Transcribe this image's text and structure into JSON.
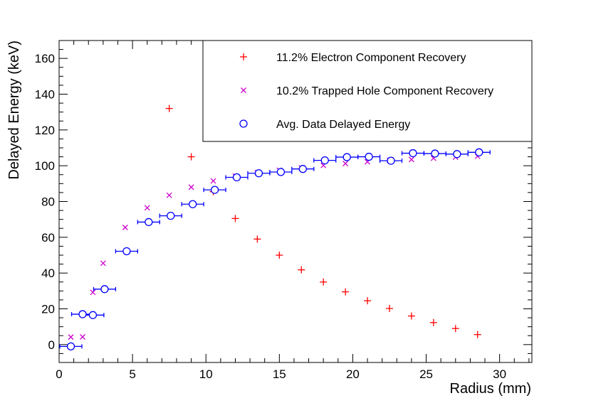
{
  "chart_data": {
    "type": "scatter",
    "xlabel": "Radius (mm)",
    "ylabel": "Delayed Energy (keV)",
    "xlim": [
      0,
      32.2
    ],
    "ylim": [
      -10,
      170
    ],
    "x_ticks": [
      "0",
      "5",
      "10",
      "15",
      "20",
      "25",
      "30"
    ],
    "y_ticks": [
      "0",
      "20",
      "40",
      "60",
      "80",
      "100",
      "120",
      "140",
      "160"
    ],
    "legend_position": "top-right",
    "colors": {
      "electron": "#ff0000",
      "hole": "#cc00cc",
      "data": "#0000ff"
    },
    "series": [
      {
        "name": "11.2% Electron Component Recovery",
        "marker": "plus",
        "points": [
          [
            7.5,
            132
          ],
          [
            9.0,
            105
          ],
          [
            10.5,
            85.5
          ],
          [
            12.0,
            70.5
          ],
          [
            13.5,
            59
          ],
          [
            15.0,
            50
          ],
          [
            16.5,
            41.8
          ],
          [
            18.0,
            35
          ],
          [
            19.5,
            29.5
          ],
          [
            21.0,
            24.5
          ],
          [
            22.5,
            20.2
          ],
          [
            24.0,
            16
          ],
          [
            25.5,
            12.3
          ],
          [
            27.0,
            9
          ],
          [
            28.5,
            5.6
          ]
        ]
      },
      {
        "name": "10.2% Trapped Hole Component Recovery",
        "marker": "cross",
        "points": [
          [
            0.8,
            4.2
          ],
          [
            1.6,
            4.3
          ],
          [
            2.3,
            29.2
          ],
          [
            3.0,
            45.5
          ],
          [
            4.5,
            65.5
          ],
          [
            6.0,
            76.5
          ],
          [
            7.5,
            83.5
          ],
          [
            9.0,
            88
          ],
          [
            10.5,
            91.5
          ],
          [
            12.0,
            94.2
          ],
          [
            13.5,
            96.2
          ],
          [
            15.0,
            97.5
          ],
          [
            16.5,
            98.8
          ],
          [
            18.0,
            100.2
          ],
          [
            19.5,
            101.2
          ],
          [
            21.0,
            102.2
          ],
          [
            22.5,
            103
          ],
          [
            24.0,
            103.5
          ],
          [
            25.5,
            104.2
          ],
          [
            27.0,
            104.8
          ],
          [
            28.5,
            105.3
          ]
        ]
      },
      {
        "name": "Avg. Data Delayed Energy",
        "marker": "open-circle",
        "points": [
          {
            "x": 0.8,
            "y": -1,
            "xerr": 0.75
          },
          {
            "x": 1.6,
            "y": 17,
            "xerr": 0.75
          },
          {
            "x": 2.3,
            "y": 16.5,
            "xerr": 0.75
          },
          {
            "x": 3.1,
            "y": 31,
            "xerr": 0.75
          },
          {
            "x": 4.6,
            "y": 52.2,
            "xerr": 0.75
          },
          {
            "x": 6.1,
            "y": 68.5,
            "xerr": 0.75
          },
          {
            "x": 7.6,
            "y": 72,
            "xerr": 0.75
          },
          {
            "x": 9.1,
            "y": 78.5,
            "xerr": 0.75
          },
          {
            "x": 10.6,
            "y": 86.5,
            "xerr": 0.75
          },
          {
            "x": 12.1,
            "y": 93.5,
            "xerr": 0.75
          },
          {
            "x": 13.6,
            "y": 95.8,
            "xerr": 0.75
          },
          {
            "x": 15.1,
            "y": 96.5,
            "xerr": 0.75
          },
          {
            "x": 16.6,
            "y": 98.2,
            "xerr": 0.75
          },
          {
            "x": 18.1,
            "y": 103,
            "xerr": 0.75
          },
          {
            "x": 19.6,
            "y": 104.8,
            "xerr": 0.75
          },
          {
            "x": 21.1,
            "y": 105,
            "xerr": 0.75
          },
          {
            "x": 22.6,
            "y": 102.8,
            "xerr": 0.75
          },
          {
            "x": 24.1,
            "y": 107,
            "xerr": 0.75
          },
          {
            "x": 25.6,
            "y": 106.8,
            "xerr": 0.75
          },
          {
            "x": 27.1,
            "y": 106.5,
            "xerr": 0.75
          },
          {
            "x": 28.6,
            "y": 107.5,
            "xerr": 0.75
          }
        ]
      }
    ]
  }
}
